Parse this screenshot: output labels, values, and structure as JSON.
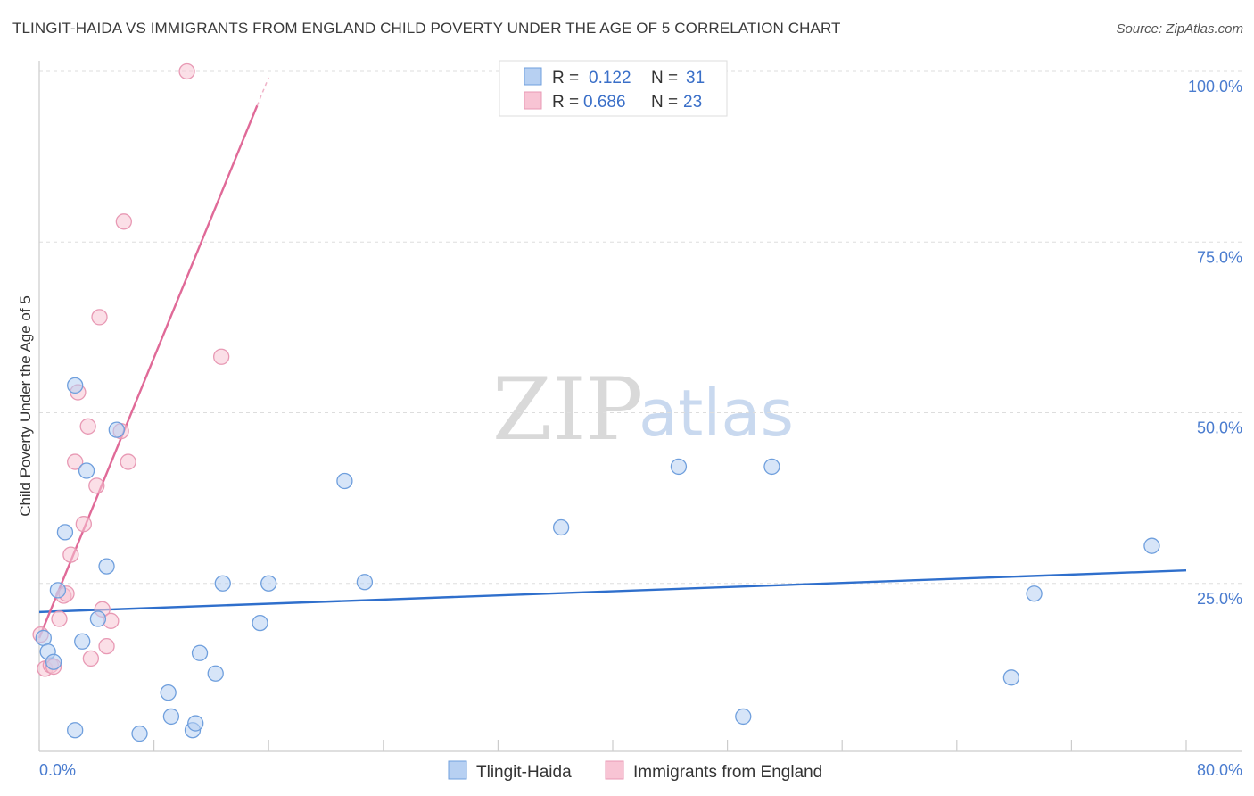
{
  "title": "TLINGIT-HAIDA VS IMMIGRANTS FROM ENGLAND CHILD POVERTY UNDER THE AGE OF 5 CORRELATION CHART",
  "source": "Source: ZipAtlas.com",
  "watermark": {
    "zip": "ZIP",
    "atlas": "atlas"
  },
  "colors": {
    "blue_fill": "#b7d0f2",
    "blue_stroke": "#6f9fdd",
    "blue_line": "#2f6fcc",
    "pink_fill": "#f8c4d4",
    "pink_stroke": "#e899b4",
    "pink_line": "#e06a98",
    "tick_text": "#4a7ccf",
    "grid": "#dddddd"
  },
  "legend": {
    "rows": [
      {
        "r_label": "R =",
        "r_value": "0.122",
        "n_label": "N =",
        "n_value": "31"
      },
      {
        "r_label": "R =",
        "r_value": "0.686",
        "n_label": "N =",
        "n_value": "23"
      }
    ]
  },
  "chart_data": {
    "type": "scatter",
    "title": "TLINGIT-HAIDA VS IMMIGRANTS FROM ENGLAND CHILD POVERTY UNDER THE AGE OF 5 CORRELATION CHART",
    "xlabel": "",
    "ylabel": "Child Poverty Under the Age of 5",
    "xlim": [
      0,
      80
    ],
    "ylim": [
      0,
      100
    ],
    "x_tick_labels": [
      "0.0%",
      "80.0%"
    ],
    "y_ticks": [
      25,
      50,
      75,
      100
    ],
    "y_tick_labels": [
      "25.0%",
      "50.0%",
      "75.0%",
      "100.0%"
    ],
    "grid": true,
    "legend_position": "top-center",
    "series": [
      {
        "name": "Tlingit-Haida",
        "r": 0.122,
        "n": 31,
        "trend": {
          "x0": 0,
          "y0": 20.8,
          "x1": 80,
          "y1": 26.9
        },
        "points": [
          [
            0.3,
            17
          ],
          [
            0.6,
            15
          ],
          [
            1.0,
            13.5
          ],
          [
            1.3,
            24
          ],
          [
            1.8,
            32.5
          ],
          [
            2.5,
            3.5
          ],
          [
            2.5,
            54
          ],
          [
            3.0,
            16.5
          ],
          [
            3.3,
            41.5
          ],
          [
            4.1,
            19.8
          ],
          [
            4.7,
            27.5
          ],
          [
            5.4,
            47.5
          ],
          [
            7.0,
            3
          ],
          [
            9.0,
            9
          ],
          [
            9.2,
            5.5
          ],
          [
            10.7,
            3.5
          ],
          [
            10.9,
            4.5
          ],
          [
            11.2,
            14.8
          ],
          [
            12.3,
            11.8
          ],
          [
            12.8,
            25
          ],
          [
            15.4,
            19.2
          ],
          [
            16.0,
            25
          ],
          [
            21.3,
            40
          ],
          [
            22.7,
            25.2
          ],
          [
            36.4,
            33.2
          ],
          [
            44.6,
            42.1
          ],
          [
            49.1,
            5.5
          ],
          [
            51.1,
            42.1
          ],
          [
            67.8,
            11.2
          ],
          [
            69.4,
            23.5
          ],
          [
            77.6,
            30.5
          ]
        ]
      },
      {
        "name": "Immigrants from England",
        "r": 0.686,
        "n": 23,
        "trend": {
          "x0": 0,
          "y0": 17,
          "x1": 15.2,
          "y1": 95,
          "dashed_to_x": 16
        },
        "points": [
          [
            0.1,
            17.5
          ],
          [
            0.4,
            12.5
          ],
          [
            0.8,
            13
          ],
          [
            1.0,
            12.8
          ],
          [
            1.4,
            19.8
          ],
          [
            1.7,
            23.2
          ],
          [
            1.9,
            23.5
          ],
          [
            2.2,
            29.2
          ],
          [
            2.5,
            42.8
          ],
          [
            2.7,
            53
          ],
          [
            3.1,
            33.7
          ],
          [
            3.4,
            48
          ],
          [
            3.6,
            14
          ],
          [
            4.0,
            39.3
          ],
          [
            4.2,
            64
          ],
          [
            4.4,
            21.2
          ],
          [
            4.7,
            15.8
          ],
          [
            5.0,
            19.5
          ],
          [
            5.7,
            47.3
          ],
          [
            5.9,
            78
          ],
          [
            6.2,
            42.8
          ],
          [
            10.3,
            100
          ],
          [
            12.7,
            58.2
          ]
        ]
      }
    ]
  }
}
